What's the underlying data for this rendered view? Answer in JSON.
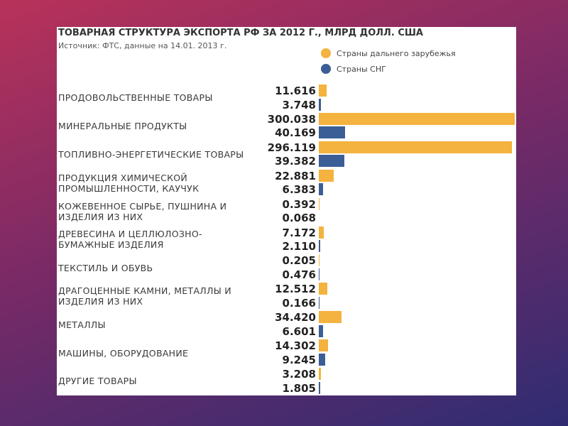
{
  "chart_data": {
    "type": "bar",
    "orientation": "horizontal",
    "title": "ТОВАРНАЯ СТРУКТУРА ЭКСПОРТА РФ ЗА 2012 Г., МЛРД ДОЛЛ. США",
    "subtitle": "Источник: ФТС, данные на 14.01. 2013 г.",
    "categories": [
      "ПРОДОВОЛЬСТВЕННЫЕ ТОВАРЫ",
      "МИНЕРАЛЬНЫЕ ПРОДУКТЫ",
      "ТОПЛИВНО-ЭНЕРГЕТИЧЕСКИЕ ТОВАРЫ",
      "ПРОДУКЦИЯ ХИМИЧЕСКОЙ ПРОМЫШЛЕННОСТИ, КАУЧУК",
      "КОЖЕВЕННОЕ СЫРЬЕ, ПУШНИНА И ИЗДЕЛИЯ ИЗ НИХ",
      "ДРЕВЕСИНА И ЦЕЛЛЮЛОЗНО-БУМАЖНЫЕ ИЗДЕЛИЯ",
      "ТЕКСТИЛЬ И ОБУВЬ",
      "ДРАГОЦЕННЫЕ КАМНИ, МЕТАЛЛЫ И ИЗДЕЛИЯ ИЗ НИХ",
      "МЕТАЛЛЫ",
      "МАШИНЫ, ОБОРУДОВАНИЕ",
      "ДРУГИЕ ТОВАРЫ"
    ],
    "series": [
      {
        "name": "Страны дальнего зарубежья",
        "color": "#f4b23e",
        "values": [
          11.616,
          300.038,
          296.119,
          22.881,
          0.392,
          7.172,
          0.205,
          12.512,
          34.42,
          14.302,
          3.208
        ],
        "value_labels": [
          "11.616",
          "300.038",
          "296.119",
          "22.881",
          "0.392",
          "7.172",
          "0.205",
          "12.512",
          "34.420",
          "14.302",
          "3.208"
        ]
      },
      {
        "name": "Страны СНГ",
        "color": "#3b5e96",
        "values": [
          3.748,
          40.169,
          39.382,
          6.383,
          0.068,
          2.11,
          0.476,
          0.166,
          6.601,
          9.245,
          1.805
        ],
        "value_labels": [
          "3.748",
          "40.169",
          "39.382",
          "6.383",
          "0.068",
          "2.110",
          "0.476",
          "0.166",
          "6.601",
          "9.245",
          "1.805"
        ]
      }
    ],
    "legend": "top-right"
  }
}
